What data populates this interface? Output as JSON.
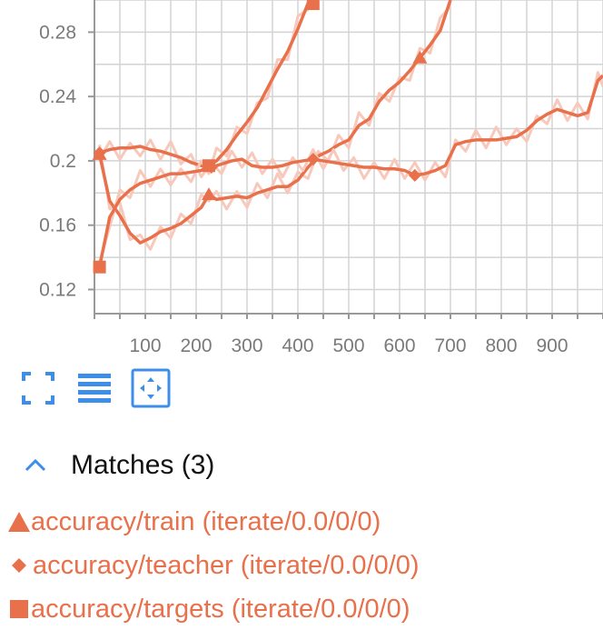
{
  "colors": {
    "series": "#e8704a",
    "smoothed_raw": "#f8c8bb",
    "grid": "#d3d3d3",
    "axis": "#999999",
    "tick_text": "#7a7a7a",
    "icon": "#3d8ee8"
  },
  "toolbar": {
    "fullscreen_icon": "expand-icon",
    "lines_icon": "list-icon",
    "fit_icon": "fit-domain-icon"
  },
  "matches": {
    "title": "Matches (3)",
    "toggle_icon": "chevron-up-icon",
    "items": [
      {
        "marker": "triangle",
        "label": "accuracy/train (iterate/0.0/0/0)"
      },
      {
        "marker": "diamond",
        "label": "accuracy/teacher (iterate/0.0/0/0)"
      },
      {
        "marker": "square",
        "label": "accuracy/targets (iterate/0.0/0/0)"
      }
    ]
  },
  "chart_data": {
    "type": "line",
    "xlim": [
      0,
      1000
    ],
    "ylim": [
      0.105,
      0.3
    ],
    "x_ticks": [
      "100",
      "200",
      "300",
      "400",
      "500",
      "600",
      "700",
      "800",
      "900"
    ],
    "y_ticks": [
      "0.12",
      "0.16",
      "0.2",
      "0.24",
      "0.28"
    ],
    "grid": true,
    "series": [
      {
        "name": "accuracy/train",
        "marker": "triangle",
        "points": [
          [
            10,
            0.204
          ],
          [
            30,
            0.175
          ],
          [
            50,
            0.166
          ],
          [
            70,
            0.155
          ],
          [
            90,
            0.149
          ],
          [
            110,
            0.152
          ],
          [
            130,
            0.156
          ],
          [
            150,
            0.158
          ],
          [
            170,
            0.161
          ],
          [
            190,
            0.166
          ],
          [
            210,
            0.171
          ],
          [
            225,
            0.179
          ],
          [
            240,
            0.176
          ],
          [
            260,
            0.177
          ],
          [
            280,
            0.178
          ],
          [
            300,
            0.177
          ],
          [
            320,
            0.18
          ],
          [
            340,
            0.182
          ],
          [
            360,
            0.184
          ],
          [
            380,
            0.184
          ],
          [
            400,
            0.188
          ],
          [
            420,
            0.196
          ],
          [
            440,
            0.203
          ],
          [
            460,
            0.206
          ],
          [
            480,
            0.21
          ],
          [
            500,
            0.213
          ],
          [
            520,
            0.222
          ],
          [
            540,
            0.226
          ],
          [
            560,
            0.237
          ],
          [
            580,
            0.244
          ],
          [
            600,
            0.249
          ],
          [
            620,
            0.256
          ],
          [
            640,
            0.264
          ],
          [
            660,
            0.272
          ],
          [
            680,
            0.281
          ],
          [
            700,
            0.3
          ]
        ]
      },
      {
        "name": "accuracy/teacher",
        "marker": "diamond",
        "points": [
          [
            10,
            0.205
          ],
          [
            30,
            0.207
          ],
          [
            50,
            0.208
          ],
          [
            70,
            0.208
          ],
          [
            90,
            0.209
          ],
          [
            110,
            0.207
          ],
          [
            130,
            0.206
          ],
          [
            150,
            0.204
          ],
          [
            170,
            0.202
          ],
          [
            190,
            0.199
          ],
          [
            210,
            0.197
          ],
          [
            230,
            0.196
          ],
          [
            250,
            0.198
          ],
          [
            270,
            0.2
          ],
          [
            290,
            0.201
          ],
          [
            310,
            0.197
          ],
          [
            330,
            0.196
          ],
          [
            350,
            0.196
          ],
          [
            370,
            0.197
          ],
          [
            390,
            0.199
          ],
          [
            410,
            0.2
          ],
          [
            430,
            0.201
          ],
          [
            450,
            0.2
          ],
          [
            470,
            0.199
          ],
          [
            490,
            0.198
          ],
          [
            510,
            0.197
          ],
          [
            530,
            0.196
          ],
          [
            550,
            0.196
          ],
          [
            570,
            0.195
          ],
          [
            590,
            0.195
          ],
          [
            610,
            0.194
          ],
          [
            630,
            0.191
          ],
          [
            650,
            0.192
          ],
          [
            670,
            0.194
          ],
          [
            690,
            0.197
          ],
          [
            710,
            0.21
          ],
          [
            730,
            0.212
          ],
          [
            750,
            0.213
          ],
          [
            770,
            0.213
          ],
          [
            790,
            0.213
          ],
          [
            810,
            0.214
          ],
          [
            830,
            0.215
          ],
          [
            850,
            0.219
          ],
          [
            870,
            0.225
          ],
          [
            890,
            0.229
          ],
          [
            910,
            0.232
          ],
          [
            930,
            0.23
          ],
          [
            950,
            0.228
          ],
          [
            970,
            0.23
          ],
          [
            990,
            0.25
          ],
          [
            1000,
            0.253
          ]
        ]
      },
      {
        "name": "accuracy/targets",
        "marker": "square",
        "points": [
          [
            10,
            0.134
          ],
          [
            30,
            0.165
          ],
          [
            50,
            0.176
          ],
          [
            70,
            0.182
          ],
          [
            90,
            0.186
          ],
          [
            110,
            0.188
          ],
          [
            130,
            0.19
          ],
          [
            150,
            0.192
          ],
          [
            170,
            0.192
          ],
          [
            190,
            0.193
          ],
          [
            210,
            0.194
          ],
          [
            225,
            0.197
          ],
          [
            240,
            0.2
          ],
          [
            260,
            0.207
          ],
          [
            280,
            0.216
          ],
          [
            300,
            0.224
          ],
          [
            320,
            0.233
          ],
          [
            340,
            0.245
          ],
          [
            360,
            0.257
          ],
          [
            380,
            0.268
          ],
          [
            400,
            0.282
          ],
          [
            420,
            0.298
          ],
          [
            430,
            0.3
          ]
        ]
      }
    ]
  }
}
